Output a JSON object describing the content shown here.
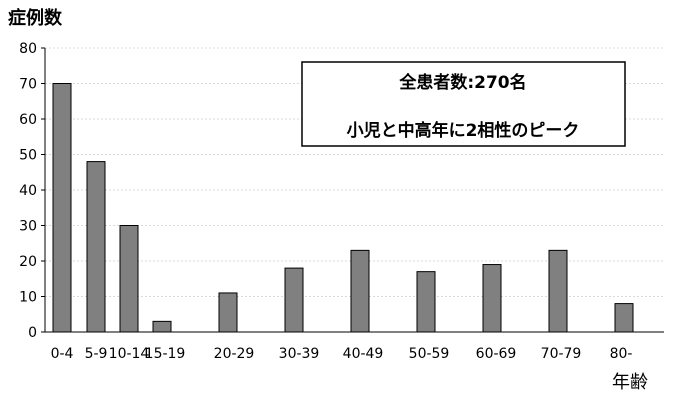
{
  "chart_data": {
    "type": "bar",
    "ylabel": "症例数",
    "xlabel": "年齢",
    "ylim": [
      0,
      80
    ],
    "yticks": [
      0,
      10,
      20,
      30,
      40,
      50,
      60,
      70,
      80
    ],
    "grid": true,
    "categories": [
      "0-4",
      "5-9",
      "10-14",
      "15-19",
      "20-29",
      "30-39",
      "40-49",
      "50-59",
      "60-69",
      "70-79",
      "80-"
    ],
    "values": [
      70,
      48,
      30,
      3,
      11,
      18,
      23,
      17,
      19,
      23,
      8
    ],
    "colors": {
      "bar": "#808080",
      "bar_stroke": "#000000",
      "grid": "#d9d9d9",
      "axis": "#000000"
    },
    "annotation": {
      "lines": [
        "全患者数:270名",
        "小児と中高年に2相性のピーク"
      ]
    }
  }
}
